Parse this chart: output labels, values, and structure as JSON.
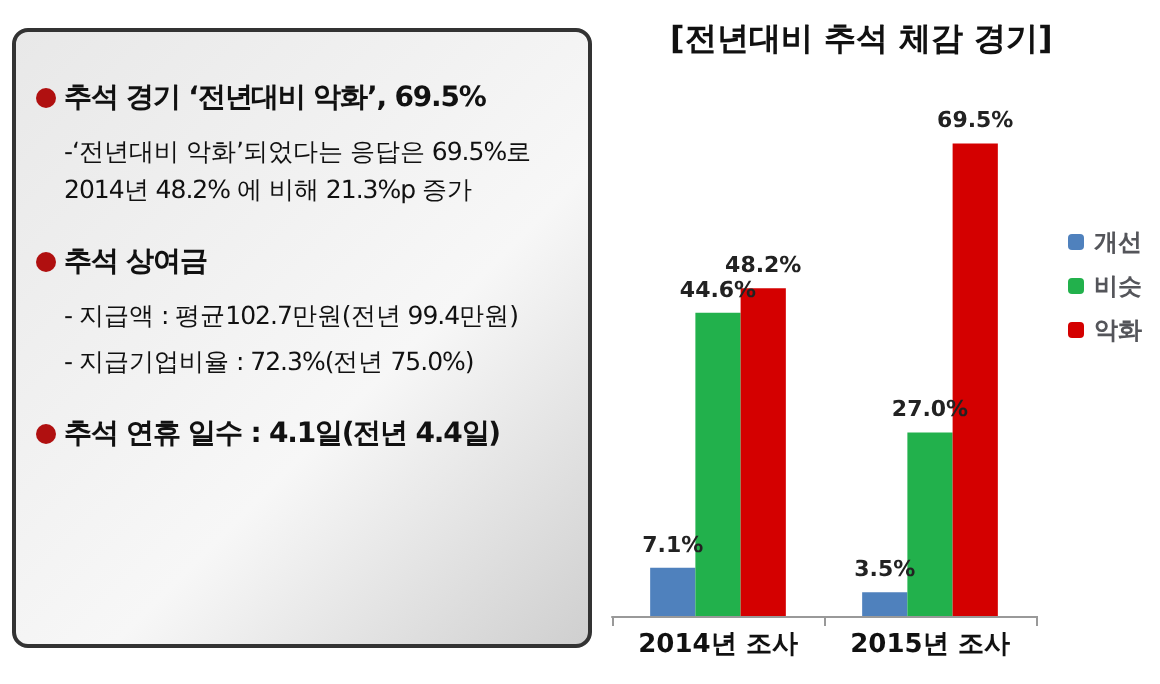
{
  "chart_data": [
    {
      "type": "other",
      "annotations": [
        "추석 경기 ‘전년대비 악화’, 69.5%",
        "-‘전년대비 악화’되었다는 응답은 69.5%로 2014년 48.2% 에 비해 21.3%p 증가",
        "추석 상여금",
        "- 지급액 : 평균102.7만원(전년 99.4만원)",
        "- 지급기업비율 : 72.3%(전년 75.0%)",
        "추석 연휴 일수 : 4.1일(전년 4.4일)"
      ]
    },
    {
      "type": "bar",
      "title": "[전년대비 추석 체감 경기]",
      "categories": [
        "2014년 조사",
        "2015년 조사"
      ],
      "legend": "right",
      "series": [
        {
          "name": "개선",
          "color": "#4f81bd",
          "values": [
            7.1,
            3.5
          ],
          "value_labels": [
            "7.1%",
            "3.5%"
          ]
        },
        {
          "name": "비슷",
          "color": "#22b14c",
          "values": [
            44.6,
            27.0
          ],
          "value_labels": [
            "44.6%",
            "27.0%"
          ]
        },
        {
          "name": "악화",
          "color": "#d40000",
          "values": [
            48.2,
            69.5
          ],
          "value_labels": [
            "48.2%",
            "69.5%"
          ]
        }
      ]
    }
  ]
}
